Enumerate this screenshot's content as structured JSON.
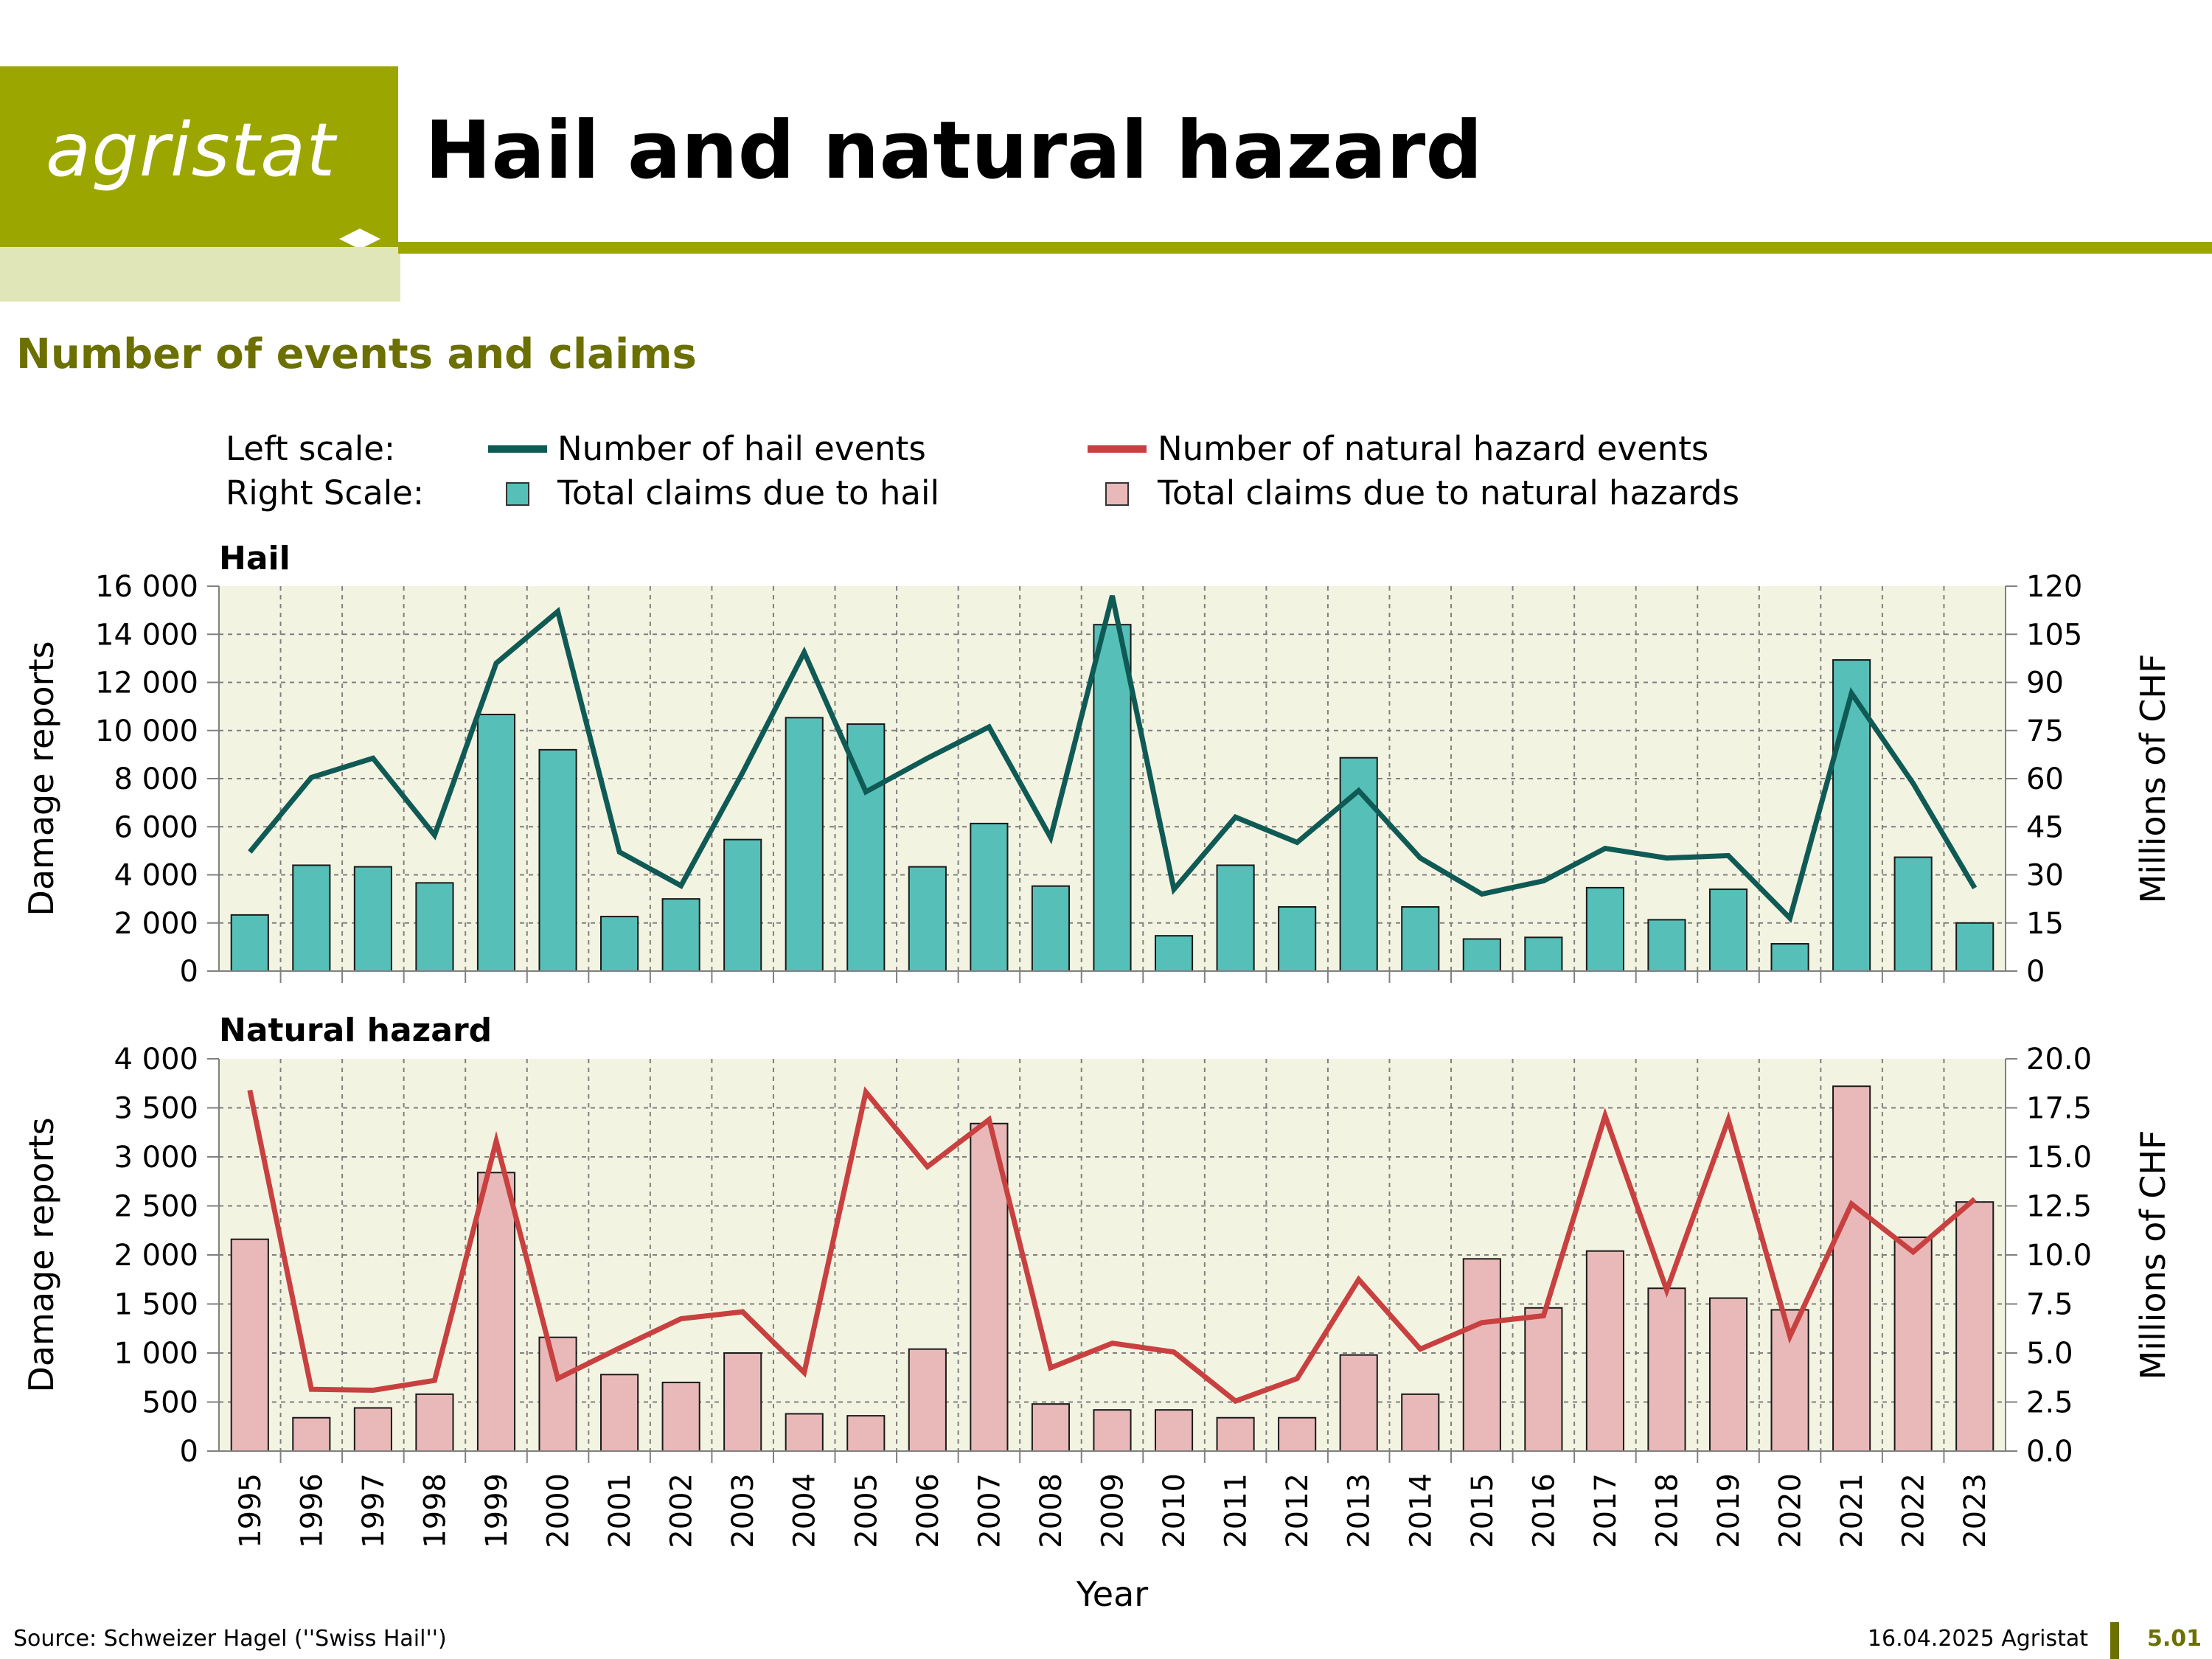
{
  "header": {
    "logo_text": "agristat",
    "title": "Hail and natural hazard",
    "section_title": "Number of events and claims"
  },
  "legend": {
    "left_scale_label": "Left scale:",
    "right_scale_label": "Right Scale:",
    "hail_events": "Number of hail events",
    "hazard_events": "Number of natural hazard events",
    "hail_claims": "Total claims due to hail",
    "hazard_claims": "Total claims due to natural hazards"
  },
  "colors": {
    "hail_line": "#0f5a55",
    "hail_bar": "#55bfb8",
    "hazard_line": "#c8403f",
    "hazard_bar": "#e8b9b8",
    "plot_bg": "#f3f3e2",
    "brand": "#9ca600"
  },
  "chart_data": [
    {
      "type": "bar",
      "title": "Hail",
      "xlabel": "Year",
      "ylabel": "Damage reports",
      "y2label": "Millions of CHF",
      "ylim": [
        0,
        16000
      ],
      "y2lim": [
        0,
        120
      ],
      "yticks": [
        "0",
        "2 000",
        "4 000",
        "6 000",
        "8 000",
        "10 000",
        "12 000",
        "14 000",
        "16 000"
      ],
      "y2ticks": [
        "0",
        "15",
        "30",
        "45",
        "60",
        "75",
        "90",
        "105",
        "120"
      ],
      "grid": true,
      "categories": [
        "1995",
        "1996",
        "1997",
        "1998",
        "1999",
        "2000",
        "2001",
        "2002",
        "2003",
        "2004",
        "2005",
        "2006",
        "2007",
        "2008",
        "2009",
        "2010",
        "2011",
        "2012",
        "2013",
        "2014",
        "2015",
        "2016",
        "2017",
        "2018",
        "2019",
        "2020",
        "2021",
        "2022",
        "2023"
      ],
      "series": [
        {
          "name": "Total claims due to hail",
          "type": "bar",
          "axis": "right",
          "values": [
            17.5,
            33,
            32.5,
            27.5,
            80,
            69,
            17,
            22.5,
            41,
            79,
            77,
            32.5,
            46,
            26.5,
            108,
            11,
            33,
            20,
            66.5,
            20,
            10,
            10.5,
            26,
            16,
            25.5,
            8.5,
            97,
            35.5,
            15
          ]
        },
        {
          "name": "Number of hail events",
          "type": "line",
          "axis": "left",
          "values": [
            4950,
            8050,
            8850,
            5650,
            12800,
            14950,
            4950,
            3550,
            8250,
            13250,
            7450,
            8850,
            10150,
            5550,
            15600,
            3400,
            6400,
            5350,
            7500,
            4700,
            3200,
            3750,
            5100,
            4700,
            4800,
            2200,
            11550,
            7800,
            3450
          ]
        }
      ]
    },
    {
      "type": "bar",
      "title": "Natural hazard",
      "xlabel": "Year",
      "ylabel": "Damage reports",
      "y2label": "Millions of CHF",
      "ylim": [
        0,
        4000
      ],
      "y2lim": [
        0,
        20
      ],
      "yticks": [
        "0",
        "500",
        "1 000",
        "1 500",
        "2 000",
        "2 500",
        "3 000",
        "3 500",
        "4 000"
      ],
      "y2ticks": [
        "0.0",
        "2.5",
        "5.0",
        "7.5",
        "10.0",
        "12.5",
        "15.0",
        "17.5",
        "20.0"
      ],
      "grid": true,
      "categories": [
        "1995",
        "1996",
        "1997",
        "1998",
        "1999",
        "2000",
        "2001",
        "2002",
        "2003",
        "2004",
        "2005",
        "2006",
        "2007",
        "2008",
        "2009",
        "2010",
        "2011",
        "2012",
        "2013",
        "2014",
        "2015",
        "2016",
        "2017",
        "2018",
        "2019",
        "2020",
        "2021",
        "2022",
        "2023"
      ],
      "series": [
        {
          "name": "Total claims due to natural hazards",
          "type": "bar",
          "axis": "right",
          "values": [
            10.8,
            1.7,
            2.2,
            2.9,
            14.2,
            5.8,
            3.9,
            3.5,
            5.0,
            1.9,
            1.8,
            5.2,
            16.7,
            2.4,
            2.1,
            2.1,
            1.7,
            1.7,
            4.9,
            2.9,
            9.8,
            7.3,
            10.2,
            8.3,
            7.8,
            7.2,
            18.6,
            10.9,
            12.7
          ]
        },
        {
          "name": "Number of natural hazard events",
          "type": "line",
          "axis": "left",
          "values": [
            3680,
            630,
            620,
            720,
            3160,
            740,
            1050,
            1350,
            1420,
            800,
            3660,
            2900,
            3380,
            850,
            1100,
            1010,
            510,
            740,
            1750,
            1040,
            1310,
            1380,
            3420,
            1640,
            3380,
            1170,
            2520,
            2030,
            2570
          ]
        }
      ]
    }
  ],
  "footer": {
    "source": "Source: Schweizer Hagel (''Swiss Hail'')",
    "date": "16.04.2025 Agristat",
    "page": "5.01"
  }
}
